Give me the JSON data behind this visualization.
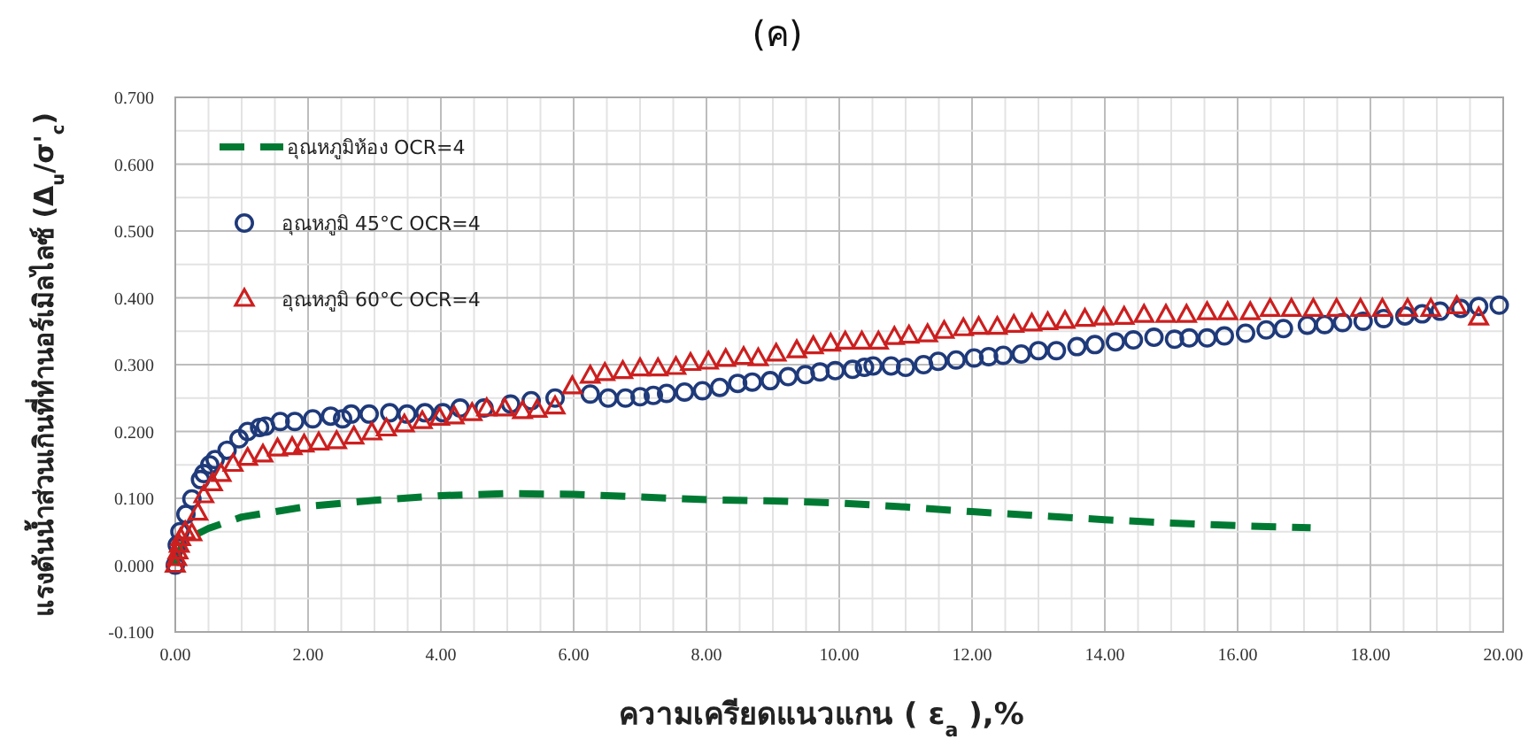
{
  "chart_data": {
    "type": "scatter",
    "title": "(ค)",
    "xlabel": "ความเครียดแนวแกน ( ε$_{a}$ ),%",
    "ylabel": "แรงดันน้ำส่วนเกินที่ทำนอร์เมิลไลซ์ (Δ$_{u}$/σ'$_{c}$)",
    "xlim": [
      0,
      20
    ],
    "ylim": [
      -0.1,
      0.7
    ],
    "xticks": [
      {
        "value": 0,
        "label": "0.00"
      },
      {
        "value": 2,
        "label": "2.00"
      },
      {
        "value": 4,
        "label": "4.00"
      },
      {
        "value": 6,
        "label": "6.00"
      },
      {
        "value": 8,
        "label": "8.00"
      },
      {
        "value": 10,
        "label": "10.00"
      },
      {
        "value": 12,
        "label": "12.00"
      },
      {
        "value": 14,
        "label": "14.00"
      },
      {
        "value": 16,
        "label": "16.00"
      },
      {
        "value": 18,
        "label": "18.00"
      },
      {
        "value": 20,
        "label": "20.00"
      }
    ],
    "yticks": [
      {
        "value": -0.1,
        "label": "-0.100"
      },
      {
        "value": 0,
        "label": "0.000"
      },
      {
        "value": 0.1,
        "label": "0.100"
      },
      {
        "value": 0.2,
        "label": "0.200"
      },
      {
        "value": 0.3,
        "label": "0.300"
      },
      {
        "value": 0.4,
        "label": "0.400"
      },
      {
        "value": 0.5,
        "label": "0.500"
      },
      {
        "value": 0.6,
        "label": "0.600"
      },
      {
        "value": 0.7,
        "label": "0.700"
      }
    ],
    "grid": true,
    "legend": "top left",
    "series": [
      {
        "name": "อุณหภูมิห้อง OCR=4",
        "type": "line",
        "marker": "none",
        "line_style": "dashed",
        "color": "#007a33",
        "x": [
          0,
          0.1,
          0.3,
          0.5,
          1,
          2,
          3,
          4,
          5,
          6,
          7,
          8,
          9,
          10,
          11,
          12,
          13,
          14,
          15,
          16,
          17.1
        ],
        "values": [
          0,
          0.03,
          0.045,
          0.055,
          0.072,
          0.088,
          0.097,
          0.104,
          0.107,
          0.106,
          0.102,
          0.098,
          0.096,
          0.093,
          0.087,
          0.08,
          0.074,
          0.068,
          0.063,
          0.059,
          0.056
        ]
      },
      {
        "name": "อุณหภูมิ 45°C OCR=4",
        "type": "scatter",
        "marker": "circle",
        "color": "#1f3a7a",
        "x": [
          0,
          0.03,
          0.07,
          0.16,
          0.25,
          0.38,
          0.43,
          0.52,
          0.6,
          0.78,
          0.96,
          1.09,
          1.27,
          1.36,
          1.58,
          1.8,
          2.07,
          2.34,
          2.52,
          2.65,
          2.92,
          3.23,
          3.49,
          3.76,
          4.03,
          4.29,
          4.65,
          5.05,
          5.36,
          5.72,
          6.25,
          6.52,
          6.78,
          7.0,
          7.2,
          7.4,
          7.67,
          7.94,
          8.2,
          8.47,
          8.69,
          8.96,
          9.23,
          9.49,
          9.71,
          9.94,
          10.2,
          10.38,
          10.51,
          10.78,
          11.0,
          11.27,
          11.49,
          11.76,
          12.03,
          12.25,
          12.47,
          12.74,
          13.0,
          13.27,
          13.58,
          13.85,
          14.16,
          14.43,
          14.74,
          15.05,
          15.27,
          15.54,
          15.8,
          16.12,
          16.43,
          16.69,
          17.05,
          17.31,
          17.58,
          17.89,
          18.2,
          18.52,
          18.78,
          19.05,
          19.36,
          19.63,
          19.94
        ],
        "values": [
          0,
          0.03,
          0.05,
          0.076,
          0.099,
          0.128,
          0.137,
          0.15,
          0.158,
          0.172,
          0.189,
          0.2,
          0.206,
          0.208,
          0.215,
          0.215,
          0.219,
          0.223,
          0.219,
          0.226,
          0.226,
          0.228,
          0.226,
          0.228,
          0.228,
          0.235,
          0.235,
          0.241,
          0.246,
          0.25,
          0.256,
          0.25,
          0.25,
          0.252,
          0.254,
          0.257,
          0.259,
          0.261,
          0.266,
          0.272,
          0.274,
          0.276,
          0.282,
          0.285,
          0.289,
          0.291,
          0.293,
          0.296,
          0.298,
          0.298,
          0.296,
          0.3,
          0.305,
          0.307,
          0.31,
          0.312,
          0.314,
          0.316,
          0.321,
          0.321,
          0.327,
          0.33,
          0.334,
          0.337,
          0.341,
          0.338,
          0.34,
          0.34,
          0.343,
          0.347,
          0.352,
          0.354,
          0.359,
          0.36,
          0.363,
          0.365,
          0.369,
          0.373,
          0.376,
          0.38,
          0.384,
          0.387,
          0.389
        ]
      },
      {
        "name": "อุณหภูมิ 60°C OCR=4",
        "type": "scatter",
        "marker": "triangle",
        "color": "#cc1f1f",
        "x": [
          0,
          0.02,
          0.04,
          0.06,
          0.08,
          0.15,
          0.25,
          0.34,
          0.43,
          0.56,
          0.69,
          0.87,
          1.09,
          1.32,
          1.54,
          1.76,
          1.94,
          2.16,
          2.43,
          2.69,
          2.96,
          3.18,
          3.45,
          3.72,
          3.98,
          4.2,
          4.47,
          4.69,
          4.96,
          5.23,
          5.45,
          5.72,
          5.98,
          6.25,
          6.47,
          6.74,
          7.0,
          7.27,
          7.54,
          7.76,
          8.03,
          8.29,
          8.56,
          8.78,
          9.05,
          9.36,
          9.61,
          9.87,
          10.09,
          10.34,
          10.59,
          10.83,
          11.05,
          11.33,
          11.58,
          11.87,
          12.1,
          12.38,
          12.63,
          12.9,
          13.14,
          13.4,
          13.7,
          13.98,
          14.29,
          14.59,
          14.92,
          15.23,
          15.54,
          15.85,
          16.19,
          16.49,
          16.81,
          17.14,
          17.49,
          17.85,
          18.18,
          18.56,
          18.91,
          19.3,
          19.63
        ],
        "values": [
          0,
          0.01,
          0.02,
          0.03,
          0.04,
          0.05,
          0.047,
          0.078,
          0.104,
          0.122,
          0.136,
          0.151,
          0.16,
          0.165,
          0.174,
          0.176,
          0.18,
          0.183,
          0.185,
          0.192,
          0.198,
          0.204,
          0.21,
          0.215,
          0.22,
          0.222,
          0.227,
          0.234,
          0.234,
          0.23,
          0.232,
          0.237,
          0.267,
          0.283,
          0.287,
          0.29,
          0.294,
          0.294,
          0.296,
          0.302,
          0.304,
          0.308,
          0.311,
          0.309,
          0.316,
          0.321,
          0.327,
          0.331,
          0.334,
          0.334,
          0.334,
          0.341,
          0.343,
          0.345,
          0.35,
          0.354,
          0.356,
          0.356,
          0.359,
          0.361,
          0.363,
          0.365,
          0.368,
          0.37,
          0.371,
          0.374,
          0.374,
          0.374,
          0.378,
          0.378,
          0.378,
          0.383,
          0.383,
          0.383,
          0.383,
          0.383,
          0.383,
          0.383,
          0.383,
          0.387,
          0.37
        ]
      }
    ]
  }
}
